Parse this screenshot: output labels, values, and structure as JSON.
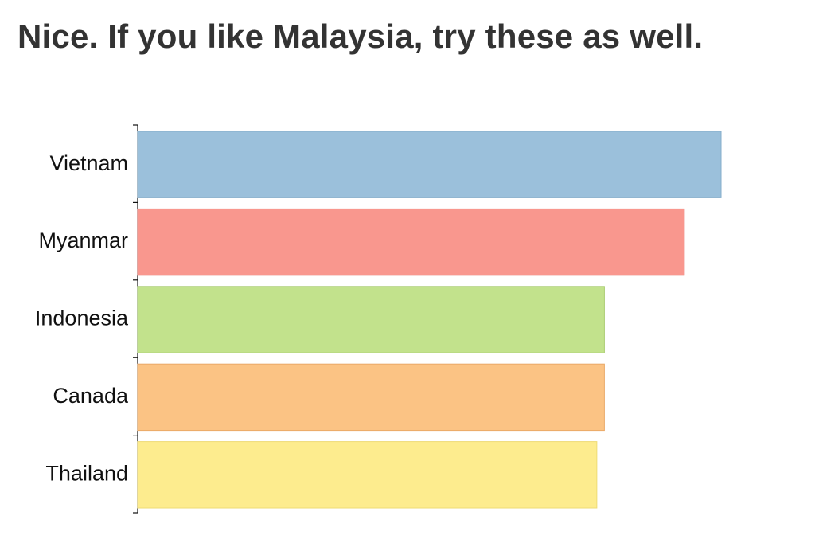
{
  "page": {
    "title": "Nice. If you like Malaysia, try these as well."
  },
  "chart_data": {
    "type": "bar",
    "orientation": "horizontal",
    "title": "Nice. If you like Malaysia, try these as well.",
    "categories": [
      "Vietnam",
      "Myanmar",
      "Indonesia",
      "Canada",
      "Thailand"
    ],
    "values": [
      100,
      93.7,
      80,
      80,
      78.7
    ],
    "colors": [
      "#9bc0db",
      "#f9978e",
      "#c2e28c",
      "#fbc384",
      "#fdec8e"
    ],
    "border_colors": [
      "#86aecb",
      "#e88078",
      "#a9cc70",
      "#eaa968",
      "#eedb74"
    ],
    "xlim": [
      0,
      100
    ],
    "x_axis_visible": false,
    "grid": false,
    "legend": "none"
  }
}
